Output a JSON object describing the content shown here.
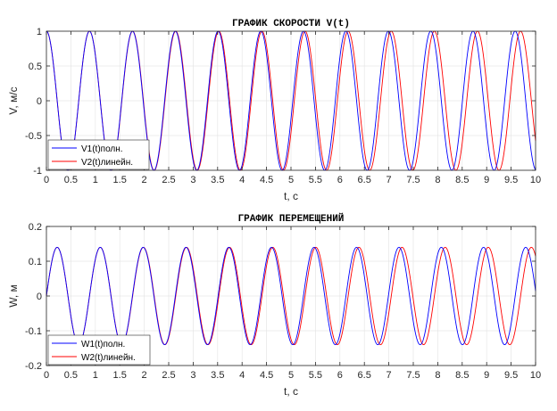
{
  "colors": {
    "series1": "#0000ff",
    "series2": "#ff0000",
    "grid": "#e6e6e6",
    "axis": "#262626"
  },
  "chart_data": [
    {
      "type": "line",
      "title": "ГРАФИК СКОРОСТИ V(t)",
      "xlabel": "t, c",
      "ylabel": "V, м/с",
      "xlim": [
        0,
        10
      ],
      "ylim": [
        -1,
        1
      ],
      "xticks": [
        0,
        0.5,
        1,
        1.5,
        2,
        2.5,
        3,
        3.5,
        4,
        4.5,
        5,
        5.5,
        6,
        6.5,
        7,
        7.5,
        8,
        8.5,
        9,
        9.5,
        10
      ],
      "xtick_labels": [
        "0",
        "0.5",
        "1",
        "1.5",
        "2",
        "2.5",
        "3",
        "3.5",
        "4",
        "4.5",
        "5",
        "5.5",
        "6",
        "6.5",
        "7",
        "7.5",
        "8",
        "8.5",
        "9",
        "9.5",
        "10"
      ],
      "yticks": [
        -1,
        -0.5,
        0,
        0.5,
        1
      ],
      "ytick_labels": [
        "-1",
        "-0.5",
        "0",
        "0.5",
        "1"
      ],
      "grid": true,
      "legend_position": "bottom-left",
      "series": [
        {
          "name": "V1(t)полн.",
          "color": "#0000ff",
          "function": "cos",
          "amplitude": 1,
          "omega": 7.13,
          "phase_drift": 0.012
        },
        {
          "name": "V2(t)линейн.",
          "color": "#ff0000",
          "function": "cos",
          "amplitude": 1,
          "omega": 7.13,
          "phase_drift": 0
        }
      ]
    },
    {
      "type": "line",
      "title": "ГРАФИК ПЕРЕМЕЩЕНИЙ",
      "xlabel": "t, c",
      "ylabel": "W, м",
      "xlim": [
        0,
        10
      ],
      "ylim": [
        -0.2,
        0.2
      ],
      "xticks": [
        0,
        0.5,
        1,
        1.5,
        2,
        2.5,
        3,
        3.5,
        4,
        4.5,
        5,
        5.5,
        6,
        6.5,
        7,
        7.5,
        8,
        8.5,
        9,
        9.5,
        10
      ],
      "xtick_labels": [
        "0",
        "0.5",
        "1",
        "1.5",
        "2",
        "2.5",
        "3",
        "3.5",
        "4",
        "4.5",
        "5",
        "5.5",
        "6",
        "6.5",
        "7",
        "7.5",
        "8",
        "8.5",
        "9",
        "9.5",
        "10"
      ],
      "yticks": [
        -0.2,
        -0.1,
        0,
        0.1,
        0.2
      ],
      "ytick_labels": [
        "-0.2",
        "-0.1",
        "0",
        "0.1",
        "0.2"
      ],
      "grid": true,
      "legend_position": "bottom-left",
      "series": [
        {
          "name": "W1(t)полн.",
          "color": "#0000ff",
          "function": "sin",
          "amplitude": 0.14,
          "omega": 7.13,
          "phase_drift": 0.012
        },
        {
          "name": "W2(t)линейн.",
          "color": "#ff0000",
          "function": "sin",
          "amplitude": 0.14,
          "omega": 7.13,
          "phase_drift": 0
        }
      ]
    }
  ]
}
